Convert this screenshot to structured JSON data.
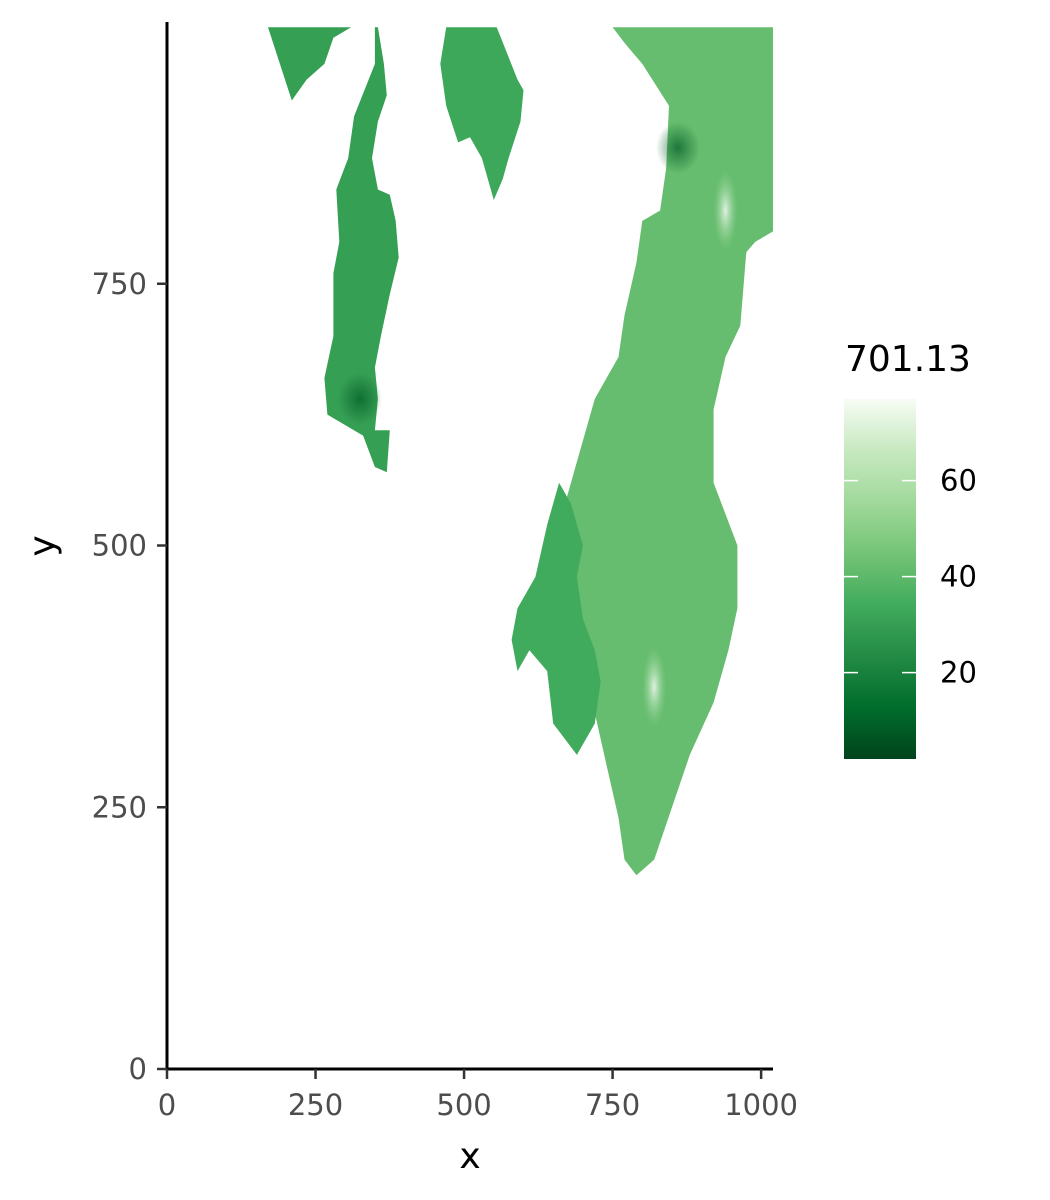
{
  "chart_data": {
    "type": "heatmap",
    "title": "",
    "xlabel": "x",
    "ylabel": "y",
    "xlim": [
      0,
      1020
    ],
    "ylim": [
      0,
      1000
    ],
    "x_ticks": [
      0,
      250,
      500,
      750,
      1000
    ],
    "y_ticks": [
      0,
      250,
      500,
      750
    ],
    "x_tick_labels": [
      "0",
      "250",
      "500",
      "750",
      "1000"
    ],
    "y_tick_labels": [
      "0",
      "250",
      "500",
      "750"
    ],
    "grid": false,
    "legend": {
      "title": "701.13",
      "placement": "right",
      "range": [
        2,
        77
      ],
      "ticks": [
        20,
        40,
        60
      ],
      "tick_labels": [
        "20",
        "40",
        "60"
      ],
      "colors": [
        "#00441b",
        "#006d2c",
        "#238b45",
        "#41ab5d",
        "#74c476",
        "#a1d99b",
        "#c7e9c0",
        "#f7fcf5"
      ]
    },
    "regions": [
      {
        "name": "left-strip",
        "value": 30,
        "polygon": [
          [
            170,
            995
          ],
          [
            210,
            925
          ],
          [
            235,
            945
          ],
          [
            265,
            960
          ],
          [
            280,
            985
          ],
          [
            310,
            995
          ],
          [
            355,
            995
          ],
          [
            365,
            960
          ],
          [
            370,
            930
          ],
          [
            355,
            905
          ],
          [
            345,
            870
          ],
          [
            355,
            840
          ],
          [
            375,
            835
          ],
          [
            385,
            810
          ],
          [
            390,
            775
          ],
          [
            375,
            740
          ],
          [
            360,
            700
          ],
          [
            350,
            670
          ],
          [
            355,
            640
          ],
          [
            350,
            610
          ],
          [
            375,
            610
          ],
          [
            370,
            570
          ],
          [
            350,
            575
          ],
          [
            330,
            605
          ],
          [
            270,
            625
          ],
          [
            265,
            660
          ],
          [
            280,
            700
          ],
          [
            280,
            760
          ],
          [
            290,
            790
          ],
          [
            285,
            840
          ],
          [
            305,
            870
          ],
          [
            315,
            910
          ],
          [
            350,
            960
          ],
          [
            350,
            995
          ]
        ]
      },
      {
        "name": "top-middle-blob",
        "value": 33,
        "polygon": [
          [
            495,
            995
          ],
          [
            555,
            995
          ],
          [
            590,
            945
          ],
          [
            600,
            935
          ],
          [
            595,
            905
          ],
          [
            575,
            870
          ],
          [
            565,
            850
          ],
          [
            550,
            830
          ],
          [
            530,
            870
          ],
          [
            510,
            890
          ],
          [
            490,
            885
          ],
          [
            470,
            920
          ],
          [
            460,
            960
          ],
          [
            470,
            995
          ]
        ]
      },
      {
        "name": "top-right-mass",
        "value": 42,
        "polygon": [
          [
            750,
            995
          ],
          [
            1020,
            995
          ],
          [
            1020,
            800
          ],
          [
            990,
            790
          ],
          [
            975,
            780
          ],
          [
            965,
            710
          ],
          [
            940,
            680
          ],
          [
            920,
            630
          ],
          [
            920,
            560
          ],
          [
            940,
            530
          ],
          [
            960,
            500
          ],
          [
            960,
            440
          ],
          [
            945,
            400
          ],
          [
            920,
            350
          ],
          [
            880,
            300
          ],
          [
            850,
            250
          ],
          [
            820,
            200
          ],
          [
            790,
            185
          ],
          [
            770,
            200
          ],
          [
            760,
            240
          ],
          [
            740,
            290
          ],
          [
            720,
            340
          ],
          [
            700,
            400
          ],
          [
            690,
            440
          ],
          [
            660,
            470
          ],
          [
            655,
            500
          ],
          [
            670,
            540
          ],
          [
            690,
            580
          ],
          [
            700,
            600
          ],
          [
            720,
            640
          ],
          [
            740,
            660
          ],
          [
            760,
            680
          ],
          [
            770,
            720
          ],
          [
            790,
            770
          ],
          [
            800,
            810
          ],
          [
            830,
            820
          ],
          [
            840,
            860
          ],
          [
            845,
            920
          ],
          [
            800,
            960
          ],
          [
            770,
            980
          ]
        ]
      },
      {
        "name": "lower-left-arm",
        "value": 34,
        "polygon": [
          [
            590,
            380
          ],
          [
            610,
            400
          ],
          [
            640,
            380
          ],
          [
            650,
            330
          ],
          [
            690,
            300
          ],
          [
            720,
            330
          ],
          [
            730,
            370
          ],
          [
            720,
            400
          ],
          [
            700,
            430
          ],
          [
            690,
            470
          ],
          [
            700,
            500
          ],
          [
            680,
            540
          ],
          [
            660,
            560
          ],
          [
            640,
            520
          ],
          [
            620,
            470
          ],
          [
            590,
            440
          ],
          [
            580,
            410
          ]
        ]
      }
    ],
    "highlights": [
      {
        "name": "bright-streak-upper",
        "x": 940,
        "y": 820,
        "value": 70
      },
      {
        "name": "bright-streak-lower",
        "x": 820,
        "y": 365,
        "value": 65
      },
      {
        "name": "dark-patch-left",
        "x": 325,
        "y": 640,
        "value": 10
      },
      {
        "name": "dark-patch-right",
        "x": 860,
        "y": 880,
        "value": 12
      }
    ]
  }
}
